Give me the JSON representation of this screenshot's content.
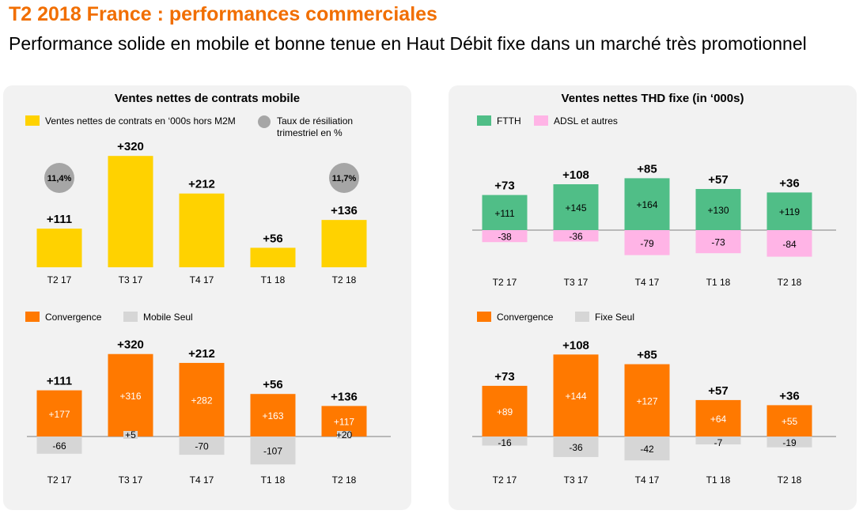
{
  "header": {
    "title": "T2 2018 France : performances commerciales",
    "subtitle": "Performance solide en mobile et bonne tenue en Haut Débit fixe dans un marché très promotionnel"
  },
  "colors": {
    "orange_brand": "#f16e00",
    "yellow": "#ffd200",
    "green": "#50be87",
    "pink": "#ffb4e6",
    "orange_bar": "#ff7900",
    "gray_bar": "#d6d6d6",
    "circle_gray": "#a6a6a6"
  },
  "left_panel": {
    "title": "Ventes nettes de contrats mobile",
    "top_legend": {
      "bar_label": "Ventes nettes de contrats en ‘000s hors M2M",
      "circle_label": "Taux de résiliation trimestriel en %"
    },
    "bottom_legend": {
      "series1": "Convergence",
      "series2": "Mobile Seul"
    }
  },
  "right_panel": {
    "title": "Ventes nettes THD fixe (in ‘000s)",
    "top_legend": {
      "series1": "FTTH",
      "series2": "ADSL et autres"
    },
    "bottom_legend": {
      "series1": "Convergence",
      "series2": "Fixe Seul"
    }
  },
  "chart_data": [
    {
      "type": "bar",
      "title": "Ventes nettes de contrats mobile",
      "categories": [
        "T2 17",
        "T3 17",
        "T4 17",
        "T1 18",
        "T2 18"
      ],
      "series": [
        {
          "name": "Ventes nettes de contrats en ‘000s hors M2M",
          "values": [
            111,
            320,
            212,
            56,
            136
          ]
        }
      ],
      "value_labels": [
        "+111",
        "+320",
        "+212",
        "+56",
        "+136"
      ],
      "circle_annotations": [
        {
          "category": "T2 17",
          "label": "11,4%"
        },
        {
          "category": "T2 18",
          "label": "11,7%"
        }
      ]
    },
    {
      "type": "bar",
      "subtype": "stacked-diverging",
      "categories": [
        "T2 17",
        "T3 17",
        "T4 17",
        "T1 18",
        "T2 18"
      ],
      "series": [
        {
          "name": "Convergence",
          "values": [
            177,
            316,
            282,
            163,
            117
          ],
          "labels": [
            "+177",
            "+316",
            "+282",
            "+163",
            "+117"
          ]
        },
        {
          "name": "Mobile Seul",
          "values": [
            -66,
            5,
            -70,
            -107,
            20
          ],
          "labels": [
            "-66",
            "+5",
            "-70",
            "-107",
            "+20"
          ]
        }
      ],
      "total_labels": [
        "+111",
        "+320",
        "+212",
        "+56",
        "+136"
      ]
    },
    {
      "type": "bar",
      "subtype": "stacked-diverging",
      "title": "Ventes nettes THD fixe (in ‘000s)",
      "categories": [
        "T2 17",
        "T3 17",
        "T4 17",
        "T1 18",
        "T2 18"
      ],
      "series": [
        {
          "name": "FTTH",
          "values": [
            111,
            145,
            164,
            130,
            119
          ],
          "labels": [
            "+111",
            "+145",
            "+164",
            "+130",
            "+119"
          ]
        },
        {
          "name": "ADSL et autres",
          "values": [
            -38,
            -36,
            -79,
            -73,
            -84
          ],
          "labels": [
            "-38",
            "-36",
            "-79",
            "-73",
            "-84"
          ]
        }
      ],
      "total_labels": [
        "+73",
        "+108",
        "+85",
        "+57",
        "+36"
      ]
    },
    {
      "type": "bar",
      "subtype": "stacked-diverging",
      "categories": [
        "T2 17",
        "T3 17",
        "T4 17",
        "T1 18",
        "T2 18"
      ],
      "series": [
        {
          "name": "Convergence",
          "values": [
            89,
            144,
            127,
            64,
            55
          ],
          "labels": [
            "+89",
            "+144",
            "+127",
            "+64",
            "+55"
          ]
        },
        {
          "name": "Fixe Seul",
          "values": [
            -16,
            -36,
            -42,
            -7,
            -19
          ],
          "labels": [
            "-16",
            "-36",
            "-42",
            "-7",
            "-19"
          ]
        }
      ],
      "total_labels": [
        "+73",
        "+108",
        "+85",
        "+57",
        "+36"
      ]
    }
  ]
}
